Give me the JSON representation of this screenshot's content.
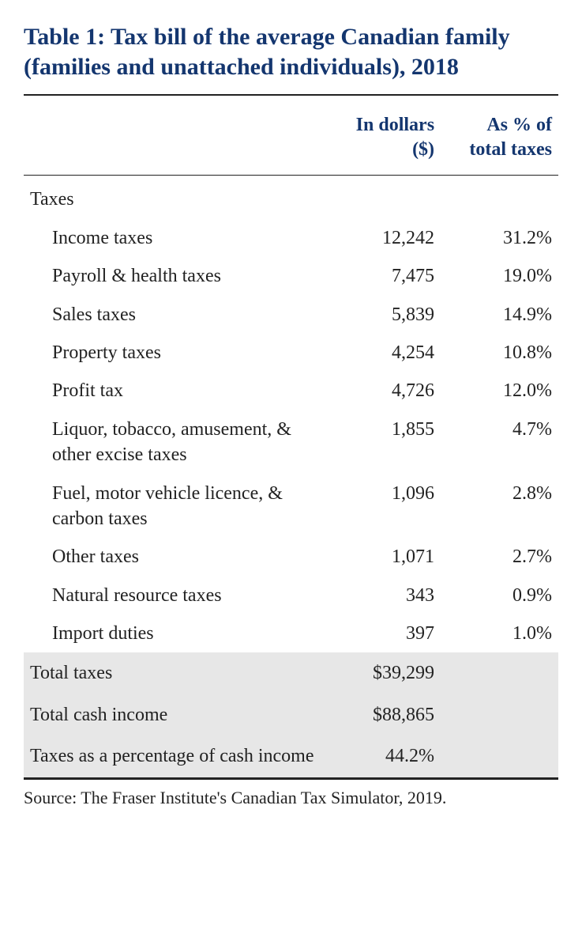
{
  "title": "Table 1: Tax bill of the average Canadian family (families and unattached individuals), 2018",
  "colors": {
    "heading": "#14366f",
    "text": "#222222",
    "totals_bg": "#e7e7e7",
    "rule": "#222222",
    "background": "#ffffff"
  },
  "typography": {
    "title_fontsize": 30,
    "body_fontsize": 24,
    "source_fontsize": 22,
    "title_weight": "bold"
  },
  "table": {
    "type": "table",
    "columns": [
      {
        "key": "label",
        "header": "",
        "align": "left",
        "width_pct": 56
      },
      {
        "key": "dollars",
        "header": "In dollars ($)",
        "align": "right",
        "width_pct": 22
      },
      {
        "key": "pct",
        "header": "As % of total taxes",
        "align": "right",
        "width_pct": 22
      }
    ],
    "section_label": "Taxes",
    "rows": [
      {
        "label": "Income taxes",
        "dollars": "12,242",
        "pct": "31.2%"
      },
      {
        "label": "Payroll & health taxes",
        "dollars": "7,475",
        "pct": "19.0%"
      },
      {
        "label": "Sales taxes",
        "dollars": "5,839",
        "pct": "14.9%"
      },
      {
        "label": "Property taxes",
        "dollars": "4,254",
        "pct": "10.8%"
      },
      {
        "label": "Profit tax",
        "dollars": "4,726",
        "pct": "12.0%"
      },
      {
        "label": "Liquor, tobacco, amusement, & other excise taxes",
        "dollars": "1,855",
        "pct": "4.7%"
      },
      {
        "label": "Fuel, motor vehicle licence, & carbon taxes",
        "dollars": "1,096",
        "pct": "2.8%"
      },
      {
        "label": "Other taxes",
        "dollars": "1,071",
        "pct": "2.7%"
      },
      {
        "label": "Natural resource taxes",
        "dollars": "343",
        "pct": "0.9%"
      },
      {
        "label": "Import duties",
        "dollars": "397",
        "pct": "1.0%"
      }
    ],
    "totals": [
      {
        "label": "Total taxes",
        "dollars": "$39,299",
        "pct": ""
      },
      {
        "label": "Total cash income",
        "dollars": "$88,865",
        "pct": ""
      },
      {
        "label": "Taxes as a percentage of cash income",
        "dollars": "44.2%",
        "pct": ""
      }
    ]
  },
  "source": "Source: The Fraser Institute's Canadian Tax Simulator, 2019."
}
